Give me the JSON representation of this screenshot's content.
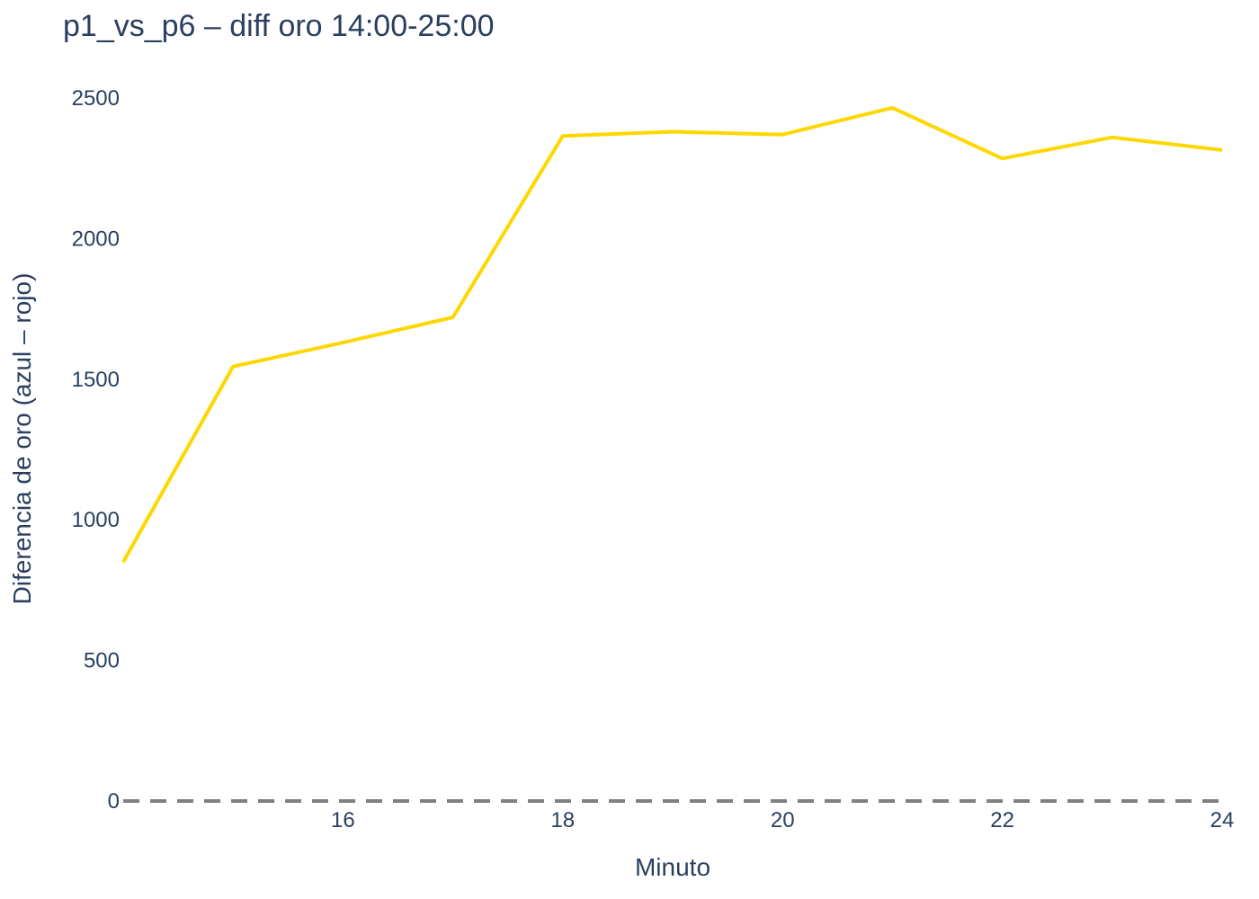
{
  "chart_data": {
    "type": "line",
    "title": "p1_vs_p6 – diff oro 14:00-25:00",
    "xlabel": "Minuto",
    "ylabel": "Diferencia de oro (azul – rojo)",
    "x": [
      14,
      15,
      16,
      17,
      18,
      19,
      20,
      21,
      22,
      23,
      24
    ],
    "series": [
      {
        "values": [
          850,
          1545,
          1630,
          1720,
          2365,
          2380,
          2370,
          2465,
          2285,
          2360,
          2315
        ],
        "color": "#FFD700"
      }
    ],
    "xlim": [
      14,
      24
    ],
    "ylim": [
      0,
      2500
    ],
    "x_ticks": [
      16,
      18,
      20,
      22,
      24
    ],
    "y_ticks": [
      0,
      500,
      1000,
      1500,
      2000,
      2500
    ],
    "x_tick_labels": [
      "16",
      "18",
      "20",
      "22",
      "24"
    ],
    "y_tick_labels": [
      "0",
      "500",
      "1000",
      "1500",
      "2000",
      "2500"
    ],
    "reference_line": {
      "y": 0,
      "style": "dashed",
      "color": "#808080"
    },
    "grid": false,
    "background": "#ffffff"
  }
}
